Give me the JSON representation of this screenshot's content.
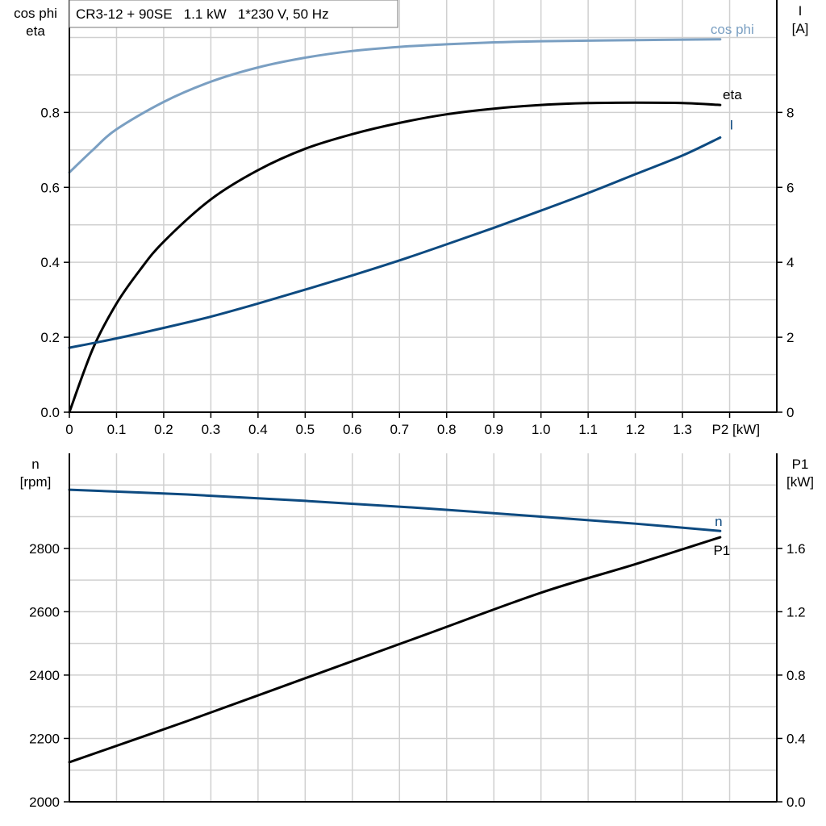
{
  "chart_data": [
    {
      "type": "line",
      "title": "CR3-12 + 90SE   1.1 kW   1*230 V, 50 Hz",
      "xlabel": "P2 [kW]",
      "ylabel_left": [
        "cos phi",
        "eta"
      ],
      "ylabel_right": [
        "I",
        "[A]"
      ],
      "xlim": [
        0,
        1.5
      ],
      "ylim_left": [
        0,
        1.1
      ],
      "ylim_right": [
        0,
        11
      ],
      "x_ticks": [
        "0",
        "0.1",
        "0.2",
        "0.3",
        "0.4",
        "0.5",
        "0.6",
        "0.7",
        "0.8",
        "0.9",
        "1.0",
        "1.1",
        "1.2",
        "1.3"
      ],
      "y_ticks_left": [
        "0.0",
        "0.2",
        "0.4",
        "0.6",
        "0.8"
      ],
      "y_ticks_right": [
        "0",
        "2",
        "4",
        "6",
        "8"
      ],
      "grid": true,
      "series": [
        {
          "name": "cos phi",
          "axis": "left",
          "color": "#7a9fc2",
          "x": [
            0,
            0.05,
            0.1,
            0.2,
            0.3,
            0.4,
            0.5,
            0.6,
            0.7,
            0.8,
            0.9,
            1.0,
            1.2,
            1.38
          ],
          "y": [
            0.64,
            0.7,
            0.755,
            0.828,
            0.882,
            0.92,
            0.946,
            0.964,
            0.975,
            0.982,
            0.987,
            0.99,
            0.993,
            0.995
          ]
        },
        {
          "name": "eta",
          "axis": "left",
          "color": "#000000",
          "x": [
            0,
            0.05,
            0.1,
            0.15,
            0.2,
            0.3,
            0.4,
            0.5,
            0.6,
            0.7,
            0.8,
            0.9,
            1.0,
            1.1,
            1.2,
            1.3,
            1.38
          ],
          "y": [
            0,
            0.17,
            0.29,
            0.38,
            0.455,
            0.568,
            0.646,
            0.703,
            0.742,
            0.772,
            0.795,
            0.81,
            0.82,
            0.825,
            0.826,
            0.825,
            0.82
          ]
        },
        {
          "name": "I",
          "axis": "right",
          "color": "#0d4a80",
          "x": [
            0,
            0.1,
            0.2,
            0.3,
            0.4,
            0.5,
            0.6,
            0.7,
            0.8,
            0.9,
            1.0,
            1.1,
            1.2,
            1.3,
            1.38
          ],
          "y": [
            1.72,
            1.97,
            2.25,
            2.55,
            2.9,
            3.27,
            3.65,
            4.05,
            4.48,
            4.92,
            5.38,
            5.85,
            6.35,
            6.85,
            7.33
          ]
        }
      ]
    },
    {
      "type": "line",
      "xlim": [
        0,
        1.5
      ],
      "ylabel_left": [
        "n",
        "[rpm]"
      ],
      "ylabel_right": [
        "P1",
        "[kW]"
      ],
      "ylim_left": [
        2000,
        3100
      ],
      "ylim_right": [
        0,
        2.2
      ],
      "y_ticks_left": [
        "2000",
        "2200",
        "2400",
        "2600",
        "2800"
      ],
      "y_ticks_right": [
        "0.0",
        "0.4",
        "0.8",
        "1.2",
        "1.6"
      ],
      "grid": true,
      "series": [
        {
          "name": "n",
          "axis": "left",
          "color": "#0d4a80",
          "x": [
            0,
            0.25,
            0.5,
            0.75,
            1.0,
            1.2,
            1.38
          ],
          "y": [
            2985,
            2970,
            2950,
            2927,
            2900,
            2878,
            2855
          ]
        },
        {
          "name": "P1",
          "axis": "right",
          "color": "#000000",
          "x": [
            0,
            0.25,
            0.5,
            0.75,
            1.0,
            1.2,
            1.38
          ],
          "y": [
            0.25,
            0.51,
            0.78,
            1.05,
            1.32,
            1.5,
            1.67
          ]
        }
      ]
    }
  ]
}
